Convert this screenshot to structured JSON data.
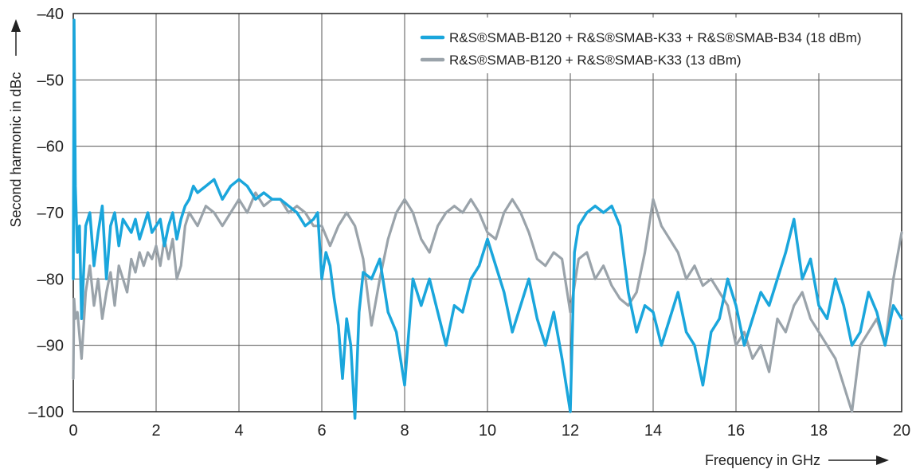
{
  "chart_data": {
    "type": "line",
    "xlabel": "Frequency in GHz",
    "ylabel": "Second harmonic in dBc",
    "xlim": [
      0,
      20
    ],
    "ylim": [
      -100,
      -40
    ],
    "xticks": [
      0,
      2,
      4,
      6,
      8,
      10,
      12,
      14,
      16,
      18,
      20
    ],
    "yticks": [
      -40,
      -50,
      -60,
      -70,
      -80,
      -90,
      -100
    ],
    "xtick_labels": [
      "0",
      "2",
      "4",
      "6",
      "8",
      "10",
      "12",
      "14",
      "16",
      "18",
      "20"
    ],
    "ytick_labels": [
      "–40",
      "–50",
      "–60",
      "–70",
      "–80",
      "–90",
      "–100"
    ],
    "grid": true,
    "legend_position": "top-right",
    "series": [
      {
        "name": "R&S®SMAB-B120 + R&S®SMAB-K33 + R&S®SMAB-B34 (18 dBm)",
        "color": "#1aa6dc",
        "x": [
          0,
          0.02,
          0.05,
          0.1,
          0.15,
          0.2,
          0.3,
          0.4,
          0.5,
          0.6,
          0.7,
          0.8,
          0.9,
          1.0,
          1.1,
          1.2,
          1.3,
          1.4,
          1.5,
          1.6,
          1.7,
          1.8,
          1.9,
          2.0,
          2.1,
          2.2,
          2.3,
          2.4,
          2.5,
          2.6,
          2.7,
          2.8,
          2.9,
          3.0,
          3.2,
          3.4,
          3.6,
          3.8,
          4.0,
          4.2,
          4.4,
          4.6,
          4.8,
          5.0,
          5.2,
          5.4,
          5.6,
          5.8,
          5.9,
          6.0,
          6.1,
          6.2,
          6.3,
          6.4,
          6.5,
          6.6,
          6.7,
          6.8,
          6.9,
          7.0,
          7.2,
          7.4,
          7.6,
          7.8,
          8.0,
          8.2,
          8.4,
          8.6,
          8.8,
          9.0,
          9.2,
          9.4,
          9.6,
          9.8,
          10.0,
          10.2,
          10.4,
          10.6,
          10.8,
          11.0,
          11.2,
          11.4,
          11.6,
          11.8,
          12.0,
          12.1,
          12.2,
          12.4,
          12.6,
          12.8,
          13.0,
          13.2,
          13.4,
          13.6,
          13.8,
          14.0,
          14.2,
          14.4,
          14.6,
          14.8,
          15.0,
          15.2,
          15.4,
          15.6,
          15.8,
          16.0,
          16.2,
          16.4,
          16.6,
          16.8,
          17.0,
          17.2,
          17.4,
          17.6,
          17.8,
          18.0,
          18.2,
          18.4,
          18.6,
          18.8,
          19.0,
          19.2,
          19.4,
          19.6,
          19.8,
          20.0
        ],
        "y": [
          -80,
          -41,
          -66,
          -76,
          -72,
          -86,
          -72,
          -70,
          -78,
          -73,
          -69,
          -80,
          -72,
          -70,
          -75,
          -71,
          -72,
          -73,
          -71,
          -74,
          -72,
          -70,
          -73,
          -72,
          -71,
          -75,
          -72,
          -70,
          -74,
          -71,
          -69,
          -68,
          -66,
          -67,
          -66,
          -65,
          -68,
          -66,
          -65,
          -66,
          -68,
          -67,
          -68,
          -68,
          -69,
          -70,
          -72,
          -71,
          -70,
          -80,
          -76,
          -78,
          -83,
          -87,
          -95,
          -86,
          -90,
          -101,
          -85,
          -79,
          -80,
          -77,
          -85,
          -88,
          -96,
          -80,
          -84,
          -80,
          -85,
          -90,
          -84,
          -85,
          -80,
          -78,
          -74,
          -78,
          -82,
          -88,
          -84,
          -80,
          -86,
          -90,
          -85,
          -92,
          -100,
          -76,
          -72,
          -70,
          -69,
          -70,
          -69,
          -72,
          -82,
          -88,
          -84,
          -85,
          -90,
          -86,
          -82,
          -88,
          -90,
          -96,
          -88,
          -86,
          -80,
          -84,
          -90,
          -86,
          -82,
          -84,
          -80,
          -76,
          -71,
          -80,
          -77,
          -84,
          -86,
          -80,
          -84,
          -90,
          -88,
          -82,
          -85,
          -90,
          -84,
          -86
        ]
      },
      {
        "name": "R&S®SMAB-B120 + R&S®SMAB-K33 (13 dBm)",
        "color": "#9aa3aa",
        "x": [
          0,
          0.02,
          0.05,
          0.1,
          0.2,
          0.3,
          0.4,
          0.5,
          0.6,
          0.7,
          0.8,
          0.9,
          1.0,
          1.1,
          1.2,
          1.3,
          1.4,
          1.5,
          1.6,
          1.7,
          1.8,
          1.9,
          2.0,
          2.1,
          2.2,
          2.3,
          2.4,
          2.5,
          2.6,
          2.7,
          2.8,
          3.0,
          3.2,
          3.4,
          3.6,
          3.8,
          4.0,
          4.2,
          4.4,
          4.6,
          4.8,
          5.0,
          5.2,
          5.4,
          5.6,
          5.8,
          6.0,
          6.2,
          6.4,
          6.6,
          6.8,
          7.0,
          7.2,
          7.4,
          7.6,
          7.8,
          8.0,
          8.2,
          8.4,
          8.6,
          8.8,
          9.0,
          9.2,
          9.4,
          9.6,
          9.8,
          10.0,
          10.2,
          10.4,
          10.6,
          10.8,
          11.0,
          11.2,
          11.4,
          11.6,
          11.8,
          12.0,
          12.2,
          12.4,
          12.6,
          12.8,
          13.0,
          13.2,
          13.4,
          13.6,
          13.8,
          14.0,
          14.2,
          14.4,
          14.6,
          14.8,
          15.0,
          15.2,
          15.4,
          15.6,
          15.8,
          16.0,
          16.2,
          16.4,
          16.6,
          16.8,
          17.0,
          17.2,
          17.4,
          17.6,
          17.8,
          18.0,
          18.2,
          18.4,
          18.6,
          18.8,
          19.0,
          19.2,
          19.4,
          19.6,
          19.8,
          20.0
        ],
        "y": [
          -95,
          -83,
          -86,
          -85,
          -92,
          -82,
          -78,
          -84,
          -80,
          -86,
          -82,
          -79,
          -84,
          -78,
          -80,
          -82,
          -77,
          -79,
          -76,
          -78,
          -76,
          -77,
          -75,
          -78,
          -74,
          -77,
          -74,
          -80,
          -78,
          -72,
          -70,
          -72,
          -69,
          -70,
          -72,
          -70,
          -68,
          -70,
          -67,
          -69,
          -68,
          -68,
          -70,
          -69,
          -70,
          -72,
          -72,
          -75,
          -72,
          -70,
          -72,
          -77,
          -87,
          -80,
          -74,
          -70,
          -68,
          -70,
          -74,
          -76,
          -72,
          -70,
          -69,
          -70,
          -68,
          -70,
          -73,
          -74,
          -70,
          -68,
          -70,
          -73,
          -77,
          -78,
          -76,
          -77,
          -85,
          -77,
          -76,
          -80,
          -78,
          -81,
          -83,
          -84,
          -82,
          -76,
          -68,
          -72,
          -74,
          -76,
          -80,
          -78,
          -81,
          -80,
          -82,
          -84,
          -90,
          -88,
          -92,
          -90,
          -94,
          -86,
          -88,
          -84,
          -82,
          -86,
          -88,
          -90,
          -92,
          -96,
          -100,
          -90,
          -88,
          -86,
          -90,
          -80,
          -73
        ]
      }
    ]
  }
}
